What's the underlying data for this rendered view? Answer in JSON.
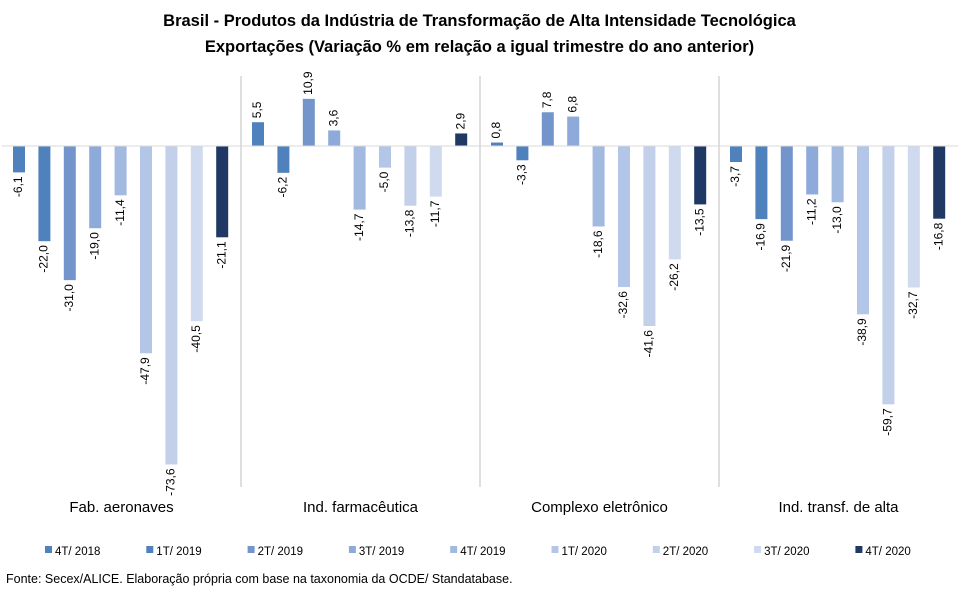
{
  "chart_data": {
    "type": "bar",
    "title": "Brasil - Produtos da Indústria de Transformação de Alta Intensidade Tecnológica",
    "subtitle": "Exportações (Variação % em relação a igual trimestre do ano anterior)",
    "categories": [
      "Fab. aeronaves",
      "Ind. farmacêutica",
      "Complexo eletrônico",
      "Ind. transf. de alta"
    ],
    "series": [
      {
        "name": "4T/ 2018",
        "color": "#4f81bd",
        "values": [
          -6.1,
          5.5,
          0.8,
          -3.7
        ],
        "labels": [
          "-6,1",
          "5,5",
          "0,8",
          "-3,7"
        ]
      },
      {
        "name": "1T/ 2019",
        "color": "#4f81bd",
        "values": [
          -22.0,
          -6.2,
          -3.3,
          -16.9
        ],
        "labels": [
          "-22,0",
          "-6,2",
          "-3,3",
          "-16,9"
        ]
      },
      {
        "name": "2T/ 2019",
        "color": "#7395cc",
        "values": [
          -31.0,
          10.9,
          7.8,
          -21.9
        ],
        "labels": [
          "-31,0",
          "10,9",
          "7,8",
          "-21,9"
        ]
      },
      {
        "name": "3T/ 2019",
        "color": "#8eaadb",
        "values": [
          -19.0,
          3.6,
          6.8,
          -11.2
        ],
        "labels": [
          "-19,0",
          "3,6",
          "6,8",
          "-11,2"
        ]
      },
      {
        "name": "4T/ 2019",
        "color": "#a2b9e0",
        "values": [
          -11.4,
          -14.7,
          -18.6,
          -13.0
        ],
        "labels": [
          "-11,4",
          "-14,7",
          "-18,6",
          "-13,0"
        ]
      },
      {
        "name": "1T/ 2020",
        "color": "#b4c6e7",
        "values": [
          -47.9,
          -5.0,
          -32.6,
          -38.9
        ],
        "labels": [
          "-47,9",
          "-5,0",
          "-32,6",
          "-38,9"
        ]
      },
      {
        "name": "2T/ 2020",
        "color": "#c2d0ea",
        "values": [
          -73.6,
          -13.8,
          -41.6,
          -59.7
        ],
        "labels": [
          "-73,6",
          "-13,8",
          "-41,6",
          "-59,7"
        ]
      },
      {
        "name": "3T/ 2020",
        "color": "#cfdaee",
        "values": [
          -40.5,
          -11.7,
          -26.2,
          -32.7
        ],
        "labels": [
          "-40,5",
          "-11,7",
          "-26,2",
          "-32,7"
        ]
      },
      {
        "name": "4T/ 2020",
        "color": "#1f3864",
        "values": [
          -21.1,
          2.9,
          -13.5,
          -16.8
        ],
        "labels": [
          "-21,1",
          "2,9",
          "-13,5",
          "-16,8"
        ]
      }
    ],
    "legend_position": "bottom",
    "grid": false
  },
  "source_note": "Fonte: Secex/ALICE. Elaboração própria  com base na taxonomia da OCDE/ Standatabase."
}
